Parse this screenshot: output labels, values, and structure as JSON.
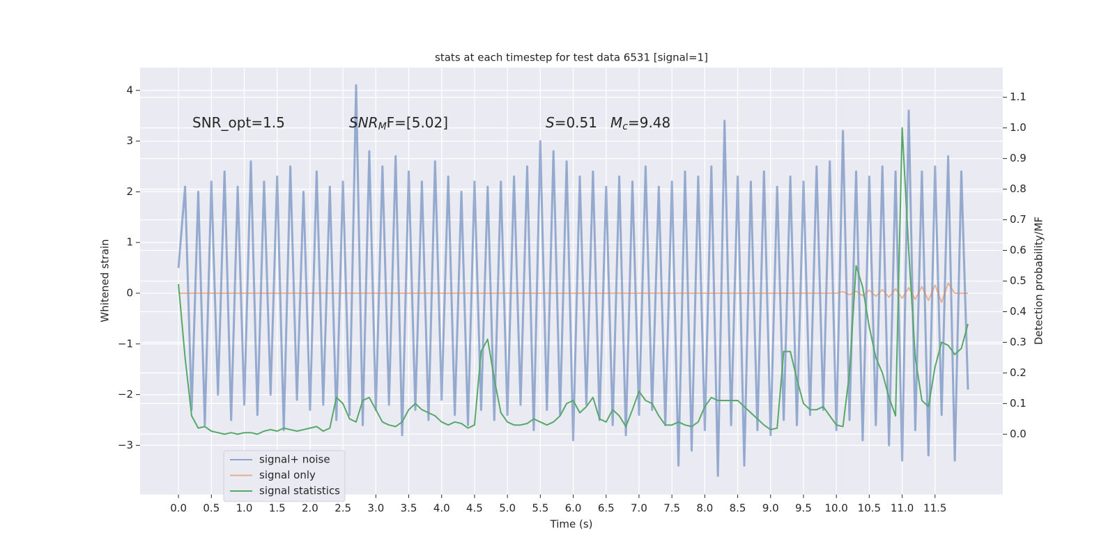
{
  "chart_data": {
    "type": "line",
    "title": "stats at each timestep for test data 6531 [signal=1]",
    "xlabel": "Time (s)",
    "ylabel": "Whitened strain",
    "y2label": "Detection probability/MF",
    "annotations": [
      {
        "parts": [
          "SNR_opt=1.5"
        ]
      },
      {
        "parts": [
          "SNR",
          "M",
          "F=[5.02]"
        ]
      },
      {
        "parts": [
          "S",
          "=0.51"
        ]
      },
      {
        "parts": [
          "M",
          "c",
          "=9.48"
        ]
      }
    ],
    "xlim": [
      -0.584,
      12.53
    ],
    "ylim": [
      -3.97,
      4.45
    ],
    "y2lim": [
      -0.197,
      1.197
    ],
    "xticks": [
      {
        "value": 0,
        "label": "0.0"
      },
      0.5,
      {
        "value": 1,
        "label": "1.0"
      },
      1.5,
      {
        "value": 2,
        "label": "2.0"
      },
      2.5,
      {
        "value": 3,
        "label": "3.0"
      },
      3.5,
      {
        "value": 4,
        "label": "4.0"
      },
      4.5,
      {
        "value": 5,
        "label": "5.0"
      },
      5.5,
      {
        "value": 6,
        "label": "6.0"
      },
      6.5,
      {
        "value": 7,
        "label": "7.0"
      },
      7.5,
      {
        "value": 8,
        "label": "8.0"
      },
      8.5,
      {
        "value": 9,
        "label": "9.0"
      },
      9.5,
      {
        "value": 10,
        "label": "10.0"
      },
      10.5,
      {
        "value": 11,
        "label": "11.0"
      },
      11.5
    ],
    "yticks": [
      {
        "value": -3,
        "label": "−3"
      },
      {
        "value": -2,
        "label": "−2"
      },
      {
        "value": -1,
        "label": "−1"
      },
      0,
      1,
      2,
      3,
      4
    ],
    "y2ticks": [
      {
        "value": 0,
        "label": "0.0"
      },
      0.1,
      0.2,
      0.3,
      0.4,
      0.5,
      0.6,
      0.7,
      0.8,
      0.9,
      {
        "value": 1,
        "label": "1.0"
      },
      1.1
    ],
    "grid": true,
    "x": [
      0,
      0.1,
      0.2,
      0.3,
      0.4,
      0.5,
      0.6,
      0.7,
      0.8,
      0.9,
      1,
      1.1,
      1.2,
      1.3,
      1.4,
      1.5,
      1.6,
      1.7,
      1.8,
      1.9,
      2,
      2.1,
      2.2,
      2.3,
      2.4,
      2.5,
      2.6,
      2.7,
      2.8,
      2.9,
      3,
      3.1,
      3.2,
      3.3,
      3.4,
      3.5,
      3.6,
      3.7,
      3.8,
      3.9,
      4,
      4.1,
      4.2,
      4.3,
      4.4,
      4.5,
      4.6,
      4.7,
      4.8,
      4.9,
      5,
      5.1,
      5.2,
      5.3,
      5.4,
      5.5,
      5.6,
      5.7,
      5.8,
      5.9,
      6,
      6.1,
      6.2,
      6.3,
      6.4,
      6.5,
      6.6,
      6.7,
      6.8,
      6.9,
      7,
      7.1,
      7.2,
      7.3,
      7.4,
      7.5,
      7.6,
      7.7,
      7.8,
      7.9,
      8,
      8.1,
      8.2,
      8.3,
      8.4,
      8.5,
      8.6,
      8.7,
      8.8,
      8.9,
      9,
      9.1,
      9.2,
      9.3,
      9.4,
      9.5,
      9.6,
      9.7,
      9.8,
      9.9,
      10,
      10.1,
      10.2,
      10.3,
      10.4,
      10.5,
      10.6,
      10.7,
      10.8,
      10.9,
      11,
      11.1,
      11.2,
      11.3,
      11.4,
      11.5,
      11.6,
      11.7,
      11.8,
      11.9,
      12
    ],
    "series": [
      {
        "name": "signal+ noise",
        "color": "#4c72b0",
        "values": [
          0.5,
          2.1,
          -2.3,
          2.0,
          -2.6,
          2.2,
          -2.0,
          2.4,
          -2.5,
          2.1,
          -2.2,
          2.6,
          -2.4,
          2.2,
          -2.0,
          2.3,
          -2.7,
          2.5,
          -2.1,
          2.0,
          -2.3,
          2.4,
          -2.2,
          2.1,
          -2.5,
          2.2,
          -2.4,
          4.1,
          -2.6,
          2.8,
          -2.3,
          2.5,
          -2.2,
          2.7,
          -2.8,
          2.4,
          -2.3,
          2.2,
          -2.5,
          2.6,
          -2.1,
          2.3,
          -2.4,
          2.0,
          -2.6,
          2.2,
          -2.3,
          2.1,
          -2.5,
          2.2,
          -2.4,
          2.3,
          -2.2,
          2.5,
          -2.7,
          3.0,
          -2.3,
          2.8,
          -2.4,
          2.6,
          -2.9,
          2.3,
          -2.2,
          2.4,
          -2.5,
          2.1,
          -2.6,
          2.3,
          -2.8,
          2.2,
          -2.4,
          2.5,
          -2.3,
          2.1,
          -2.6,
          2.2,
          -3.4,
          2.4,
          -3.1,
          2.3,
          -2.7,
          2.5,
          -3.6,
          3.4,
          -2.6,
          2.3,
          -3.4,
          2.2,
          -2.7,
          2.4,
          -2.8,
          2.1,
          -2.5,
          2.3,
          -2.6,
          2.2,
          -2.4,
          2.5,
          -2.3,
          2.6,
          -2.7,
          3.2,
          -2.5,
          2.4,
          -2.9,
          2.3,
          -2.6,
          2.5,
          -3.0,
          2.4,
          -3.3,
          3.6,
          -2.7,
          2.4,
          -3.2,
          2.5,
          -2.4,
          2.7,
          -3.3,
          2.4,
          -1.9
        ]
      },
      {
        "name": "signal only",
        "color": "#dd8452",
        "values": [
          0,
          0,
          0,
          0,
          0,
          0,
          0,
          0,
          0,
          0,
          0,
          0,
          0,
          0,
          0,
          0,
          0,
          0,
          0,
          0,
          0,
          0,
          0,
          0,
          0,
          0,
          0,
          0,
          0,
          0,
          0,
          0,
          0,
          0,
          0,
          0,
          0,
          0,
          0,
          0,
          0,
          0,
          0,
          0,
          0,
          0,
          0,
          0,
          0,
          0,
          0,
          0,
          0,
          0,
          0,
          0,
          0,
          0,
          0,
          0,
          0,
          0,
          0,
          0,
          0,
          0,
          0,
          0,
          0,
          0,
          0,
          0,
          0,
          0,
          0,
          0,
          0,
          0,
          0,
          0,
          0,
          0,
          0,
          0,
          0,
          0,
          0,
          0,
          0,
          0,
          0,
          0,
          0,
          0,
          0,
          0,
          0,
          0,
          0,
          0,
          0,
          0.03,
          -0.03,
          0.04,
          -0.05,
          0.06,
          -0.06,
          0.07,
          -0.08,
          0.09,
          -0.1,
          0.11,
          -0.12,
          0.13,
          -0.14,
          0.16,
          -0.18,
          0.2,
          0,
          0,
          0
        ]
      },
      {
        "name": "signal statistics",
        "color": "#55a868",
        "axis": "y2",
        "values": [
          0.49,
          0.25,
          0.06,
          0.02,
          0.025,
          0.01,
          0.005,
          0,
          0.005,
          0,
          0.005,
          0.005,
          0,
          0.01,
          0.015,
          0.01,
          0.02,
          0.015,
          0.01,
          0.015,
          0.02,
          0.025,
          0.01,
          0.02,
          0.12,
          0.1,
          0.05,
          0.04,
          0.11,
          0.12,
          0.08,
          0.04,
          0.03,
          0.025,
          0.04,
          0.08,
          0.1,
          0.08,
          0.07,
          0.06,
          0.04,
          0.03,
          0.04,
          0.035,
          0.02,
          0.03,
          0.27,
          0.31,
          0.18,
          0.07,
          0.04,
          0.03,
          0.03,
          0.035,
          0.05,
          0.04,
          0.03,
          0.04,
          0.06,
          0.1,
          0.11,
          0.07,
          0.09,
          0.12,
          0.05,
          0.04,
          0.08,
          0.06,
          0.025,
          0.08,
          0.14,
          0.11,
          0.1,
          0.06,
          0.03,
          0.03,
          0.04,
          0.03,
          0.025,
          0.04,
          0.09,
          0.12,
          0.11,
          0.11,
          0.11,
          0.11,
          0.09,
          0.07,
          0.05,
          0.03,
          0.015,
          0.02,
          0.27,
          0.27,
          0.18,
          0.1,
          0.08,
          0.08,
          0.09,
          0.06,
          0.03,
          0.025,
          0.2,
          0.55,
          0.48,
          0.35,
          0.25,
          0.2,
          0.12,
          0.06,
          1.0,
          0.6,
          0.25,
          0.11,
          0.09,
          0.22,
          0.3,
          0.29,
          0.26,
          0.28,
          0.36
        ]
      }
    ]
  }
}
